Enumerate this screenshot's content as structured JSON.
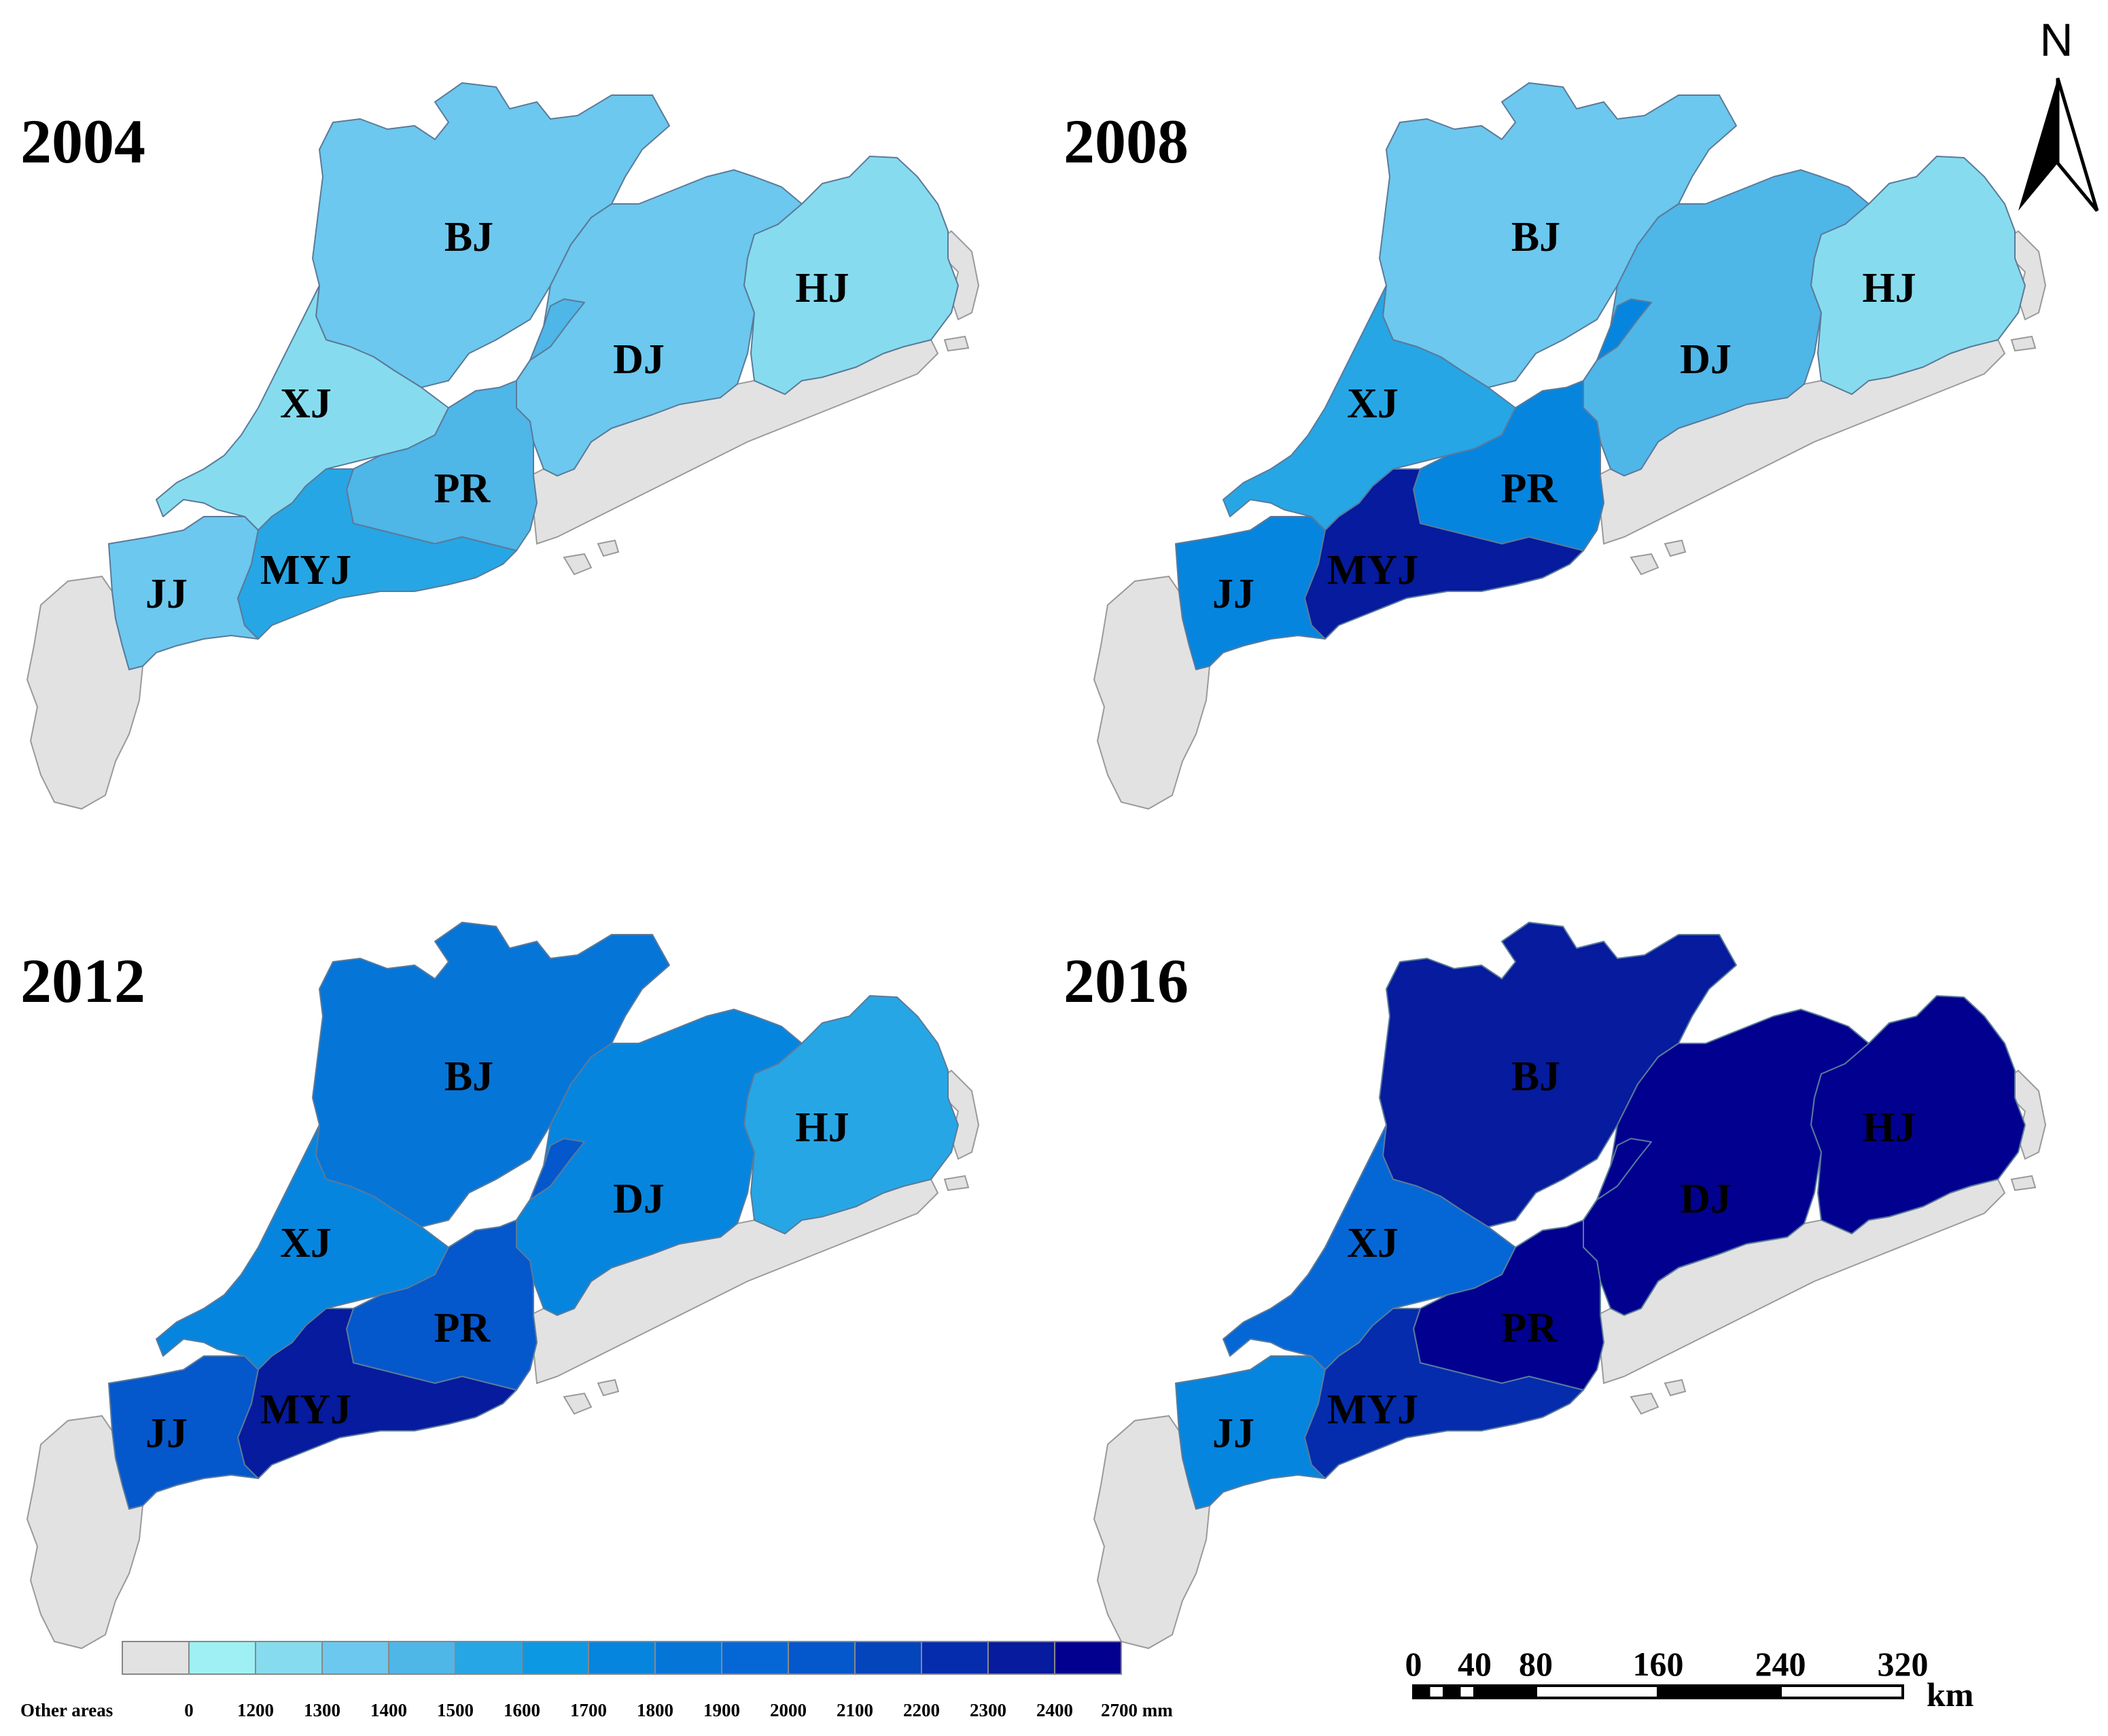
{
  "panels": [
    {
      "year": "2004",
      "classes": {
        "BJ": "1300",
        "DJ": "1300",
        "HJ": "1200",
        "XJ": "1200",
        "PR": "1400",
        "JJ": "1300",
        "MYJ": "1500"
      }
    },
    {
      "year": "2008",
      "classes": {
        "BJ": "1300",
        "DJ": "1400",
        "HJ": "1200",
        "XJ": "1500",
        "PR": "1700",
        "JJ": "1700",
        "MYJ": "2300"
      }
    },
    {
      "year": "2012",
      "classes": {
        "BJ": "1800",
        "DJ": "1700",
        "HJ": "1500",
        "XJ": "1700",
        "PR": "2000",
        "JJ": "2000",
        "MYJ": "2300"
      }
    },
    {
      "year": "2016",
      "classes": {
        "BJ": "2300",
        "DJ": "2400",
        "HJ": "2400",
        "XJ": "1900",
        "PR": "2400",
        "JJ": "1700",
        "MYJ": "2200"
      }
    }
  ],
  "region_labels": [
    "BJ",
    "DJ",
    "HJ",
    "XJ",
    "PR",
    "JJ",
    "MYJ"
  ],
  "legend": {
    "other_label": "Other areas",
    "other_color": "#e2e2e2",
    "break_labels": [
      "0",
      "1200",
      "1300",
      "1400",
      "1500",
      "1600",
      "1700",
      "1800",
      "1900",
      "2000",
      "2100",
      "2200",
      "2300",
      "2400",
      "2700 mm"
    ],
    "colors": [
      "#9ef0f5",
      "#86dcee",
      "#6cc8ee",
      "#4fb6e8",
      "#27a6e5",
      "#0d98e3",
      "#0685df",
      "#0675d8",
      "#0567d6",
      "#0557cc",
      "#0445bc",
      "#042cad",
      "#061b9d",
      "#02008f"
    ],
    "color_keys": [
      "0",
      "1200",
      "1300",
      "1400",
      "1500",
      "1600",
      "1700",
      "1800",
      "1900",
      "2000",
      "2100",
      "2200",
      "2300",
      "2400"
    ]
  },
  "north_arrow": {
    "label": "N"
  },
  "scale_bar": {
    "ticks": [
      "0",
      "40",
      "80",
      "160",
      "240",
      "320"
    ],
    "unit": "km"
  }
}
